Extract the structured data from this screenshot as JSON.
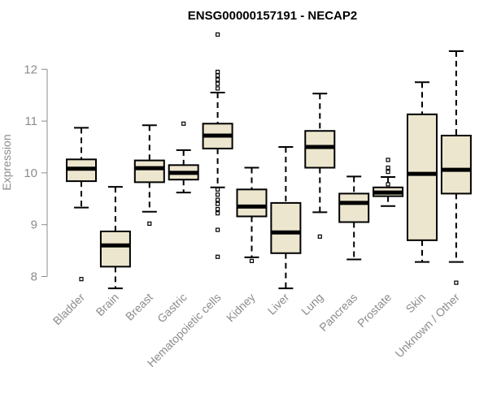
{
  "chart_data": {
    "type": "box",
    "title": "ENSG00000157191 - NECAP2",
    "xlabel": "",
    "ylabel": "Expression",
    "ylim": [
      7.6,
      12.8
    ],
    "yticks": [
      8,
      9,
      10,
      11,
      12
    ],
    "grid": false,
    "box_fill": "#ede6cf",
    "categories": [
      "Bladder",
      "Brain",
      "Breast",
      "Gastric",
      "Hematopoietic cells",
      "Kidney",
      "Liver",
      "Lung",
      "Pancreas",
      "Prostate",
      "Skin",
      "Unknown / Other"
    ],
    "boxes": [
      {
        "whislo": 9.33,
        "q1": 9.84,
        "med": 10.08,
        "q3": 10.26,
        "whishi": 10.87,
        "outliers": [
          7.95
        ]
      },
      {
        "whislo": 7.77,
        "q1": 8.19,
        "med": 8.6,
        "q3": 8.87,
        "whishi": 9.73,
        "outliers": []
      },
      {
        "whislo": 9.25,
        "q1": 9.82,
        "med": 10.09,
        "q3": 10.24,
        "whishi": 10.92,
        "outliers": [
          9.02
        ]
      },
      {
        "whislo": 9.62,
        "q1": 9.87,
        "med": 10.0,
        "q3": 10.15,
        "whishi": 10.44,
        "outliers": [
          10.95
        ]
      },
      {
        "whislo": 9.72,
        "q1": 10.47,
        "med": 10.72,
        "q3": 10.95,
        "whishi": 11.55,
        "outliers": [
          12.67,
          11.95,
          11.88,
          11.8,
          11.72,
          11.63,
          9.68,
          9.58,
          9.48,
          9.4,
          9.3,
          9.22,
          8.9,
          8.38
        ]
      },
      {
        "whislo": 8.37,
        "q1": 9.16,
        "med": 9.35,
        "q3": 9.68,
        "whishi": 10.1,
        "outliers": [
          8.3
        ]
      },
      {
        "whislo": 7.77,
        "q1": 8.45,
        "med": 8.85,
        "q3": 9.42,
        "whishi": 10.5,
        "outliers": []
      },
      {
        "whislo": 9.24,
        "q1": 10.1,
        "med": 10.5,
        "q3": 10.81,
        "whishi": 11.53,
        "outliers": [
          8.77
        ]
      },
      {
        "whislo": 8.33,
        "q1": 9.05,
        "med": 9.42,
        "q3": 9.6,
        "whishi": 9.93,
        "outliers": []
      },
      {
        "whislo": 9.36,
        "q1": 9.55,
        "med": 9.62,
        "q3": 9.72,
        "whishi": 9.92,
        "outliers": [
          10.25,
          10.1,
          10.02,
          9.78
        ]
      },
      {
        "whislo": 8.28,
        "q1": 8.7,
        "med": 9.98,
        "q3": 11.13,
        "whishi": 11.75,
        "outliers": []
      },
      {
        "whislo": 8.28,
        "q1": 9.6,
        "med": 10.06,
        "q3": 10.72,
        "whishi": 12.35,
        "outliers": [
          7.88
        ]
      }
    ]
  }
}
